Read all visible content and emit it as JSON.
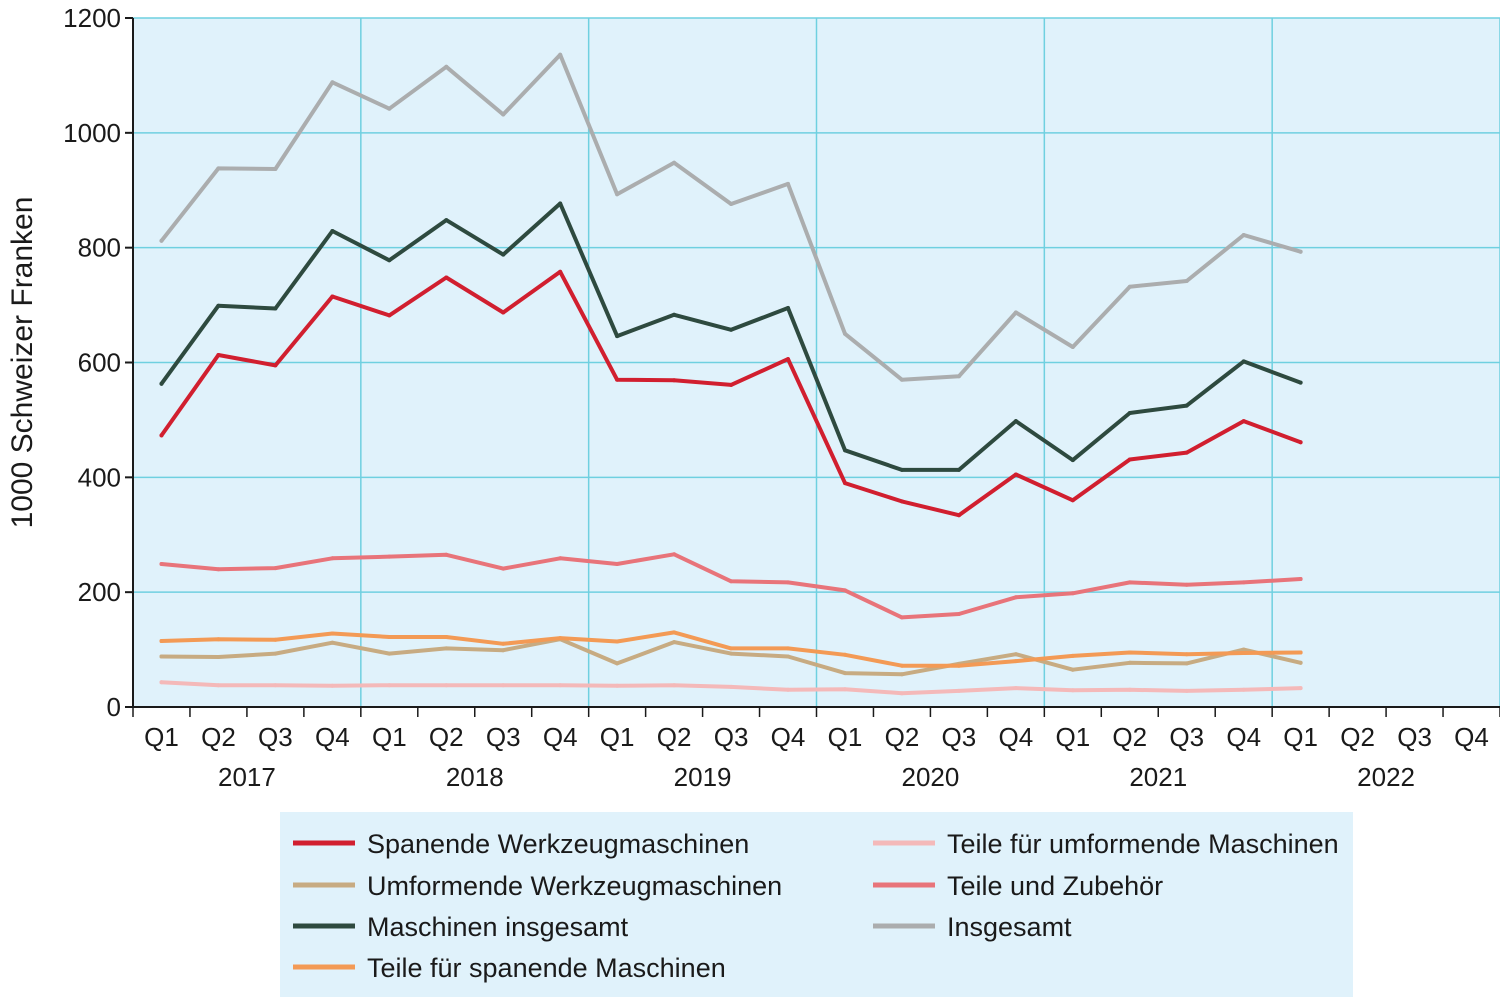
{
  "chart_data": {
    "type": "line",
    "ylabel": "1000 Schweizer Franken",
    "xlabel": "",
    "ylim": [
      0,
      1200
    ],
    "yticks": [
      0,
      200,
      400,
      600,
      800,
      1000,
      1200
    ],
    "categories": [
      "Q1",
      "Q2",
      "Q3",
      "Q4",
      "Q1",
      "Q2",
      "Q3",
      "Q4",
      "Q1",
      "Q2",
      "Q3",
      "Q4",
      "Q1",
      "Q2",
      "Q3",
      "Q4",
      "Q1",
      "Q2",
      "Q3",
      "Q4",
      "Q1",
      "Q2",
      "Q3",
      "Q4"
    ],
    "years": [
      "2017",
      "2018",
      "2019",
      "2020",
      "2021",
      "2022"
    ],
    "grid": true,
    "legend_position": "bottom",
    "colors": {
      "plot_background": "#e0f2fb",
      "grid": "#6fd0e0",
      "axis": "#1a1a1a",
      "legend_background": "#e0f2fb"
    },
    "series": [
      {
        "name": "Spanende Werkzeugmaschinen",
        "color": "#d11f2f",
        "values": [
          473,
          613,
          595,
          715,
          682,
          748,
          687,
          758,
          570,
          569,
          561,
          606,
          390,
          358,
          334,
          405,
          360,
          431,
          443,
          498,
          461,
          null,
          null,
          null
        ]
      },
      {
        "name": "Umformende Werkzeugmaschinen",
        "color": "#c7ab82",
        "values": [
          88,
          87,
          93,
          112,
          93,
          102,
          99,
          118,
          76,
          113,
          93,
          88,
          59,
          57,
          75,
          92,
          65,
          77,
          76,
          100,
          77,
          null,
          null,
          null
        ]
      },
      {
        "name": "Maschinen insgesamt",
        "color": "#2e4a3f",
        "values": [
          563,
          699,
          694,
          829,
          778,
          848,
          788,
          877,
          646,
          683,
          657,
          695,
          447,
          413,
          413,
          498,
          430,
          512,
          525,
          602,
          565,
          null,
          null,
          null
        ]
      },
      {
        "name": "Teile für spanende Maschinen",
        "color": "#f39a55",
        "values": [
          115,
          118,
          117,
          128,
          122,
          122,
          110,
          120,
          114,
          130,
          102,
          102,
          91,
          72,
          72,
          80,
          89,
          95,
          92,
          94,
          95,
          null,
          null,
          null
        ]
      },
      {
        "name": "Teile für umformende Maschinen",
        "color": "#f4b9b9",
        "values": [
          43,
          38,
          38,
          37,
          38,
          38,
          38,
          38,
          37,
          38,
          35,
          30,
          31,
          24,
          28,
          33,
          29,
          30,
          28,
          30,
          33,
          null,
          null,
          null
        ]
      },
      {
        "name": "Teile und Zubehör",
        "color": "#e8747a",
        "values": [
          249,
          240,
          242,
          259,
          262,
          265,
          241,
          259,
          249,
          266,
          219,
          217,
          203,
          156,
          162,
          191,
          198,
          217,
          213,
          217,
          223,
          null,
          null,
          null
        ]
      },
      {
        "name": "Insgesamt",
        "color": "#abadae",
        "values": [
          812,
          938,
          937,
          1088,
          1042,
          1115,
          1032,
          1136,
          893,
          948,
          876,
          911,
          650,
          570,
          576,
          687,
          627,
          732,
          742,
          822,
          793,
          null,
          null,
          null
        ]
      }
    ],
    "legend_layout": [
      [
        "Spanende Werkzeugmaschinen",
        "Teile für umformende Maschinen"
      ],
      [
        "Umformende Werkzeugmaschinen",
        "Teile und Zubehör"
      ],
      [
        "Maschinen insgesamt",
        "Insgesamt"
      ],
      [
        "Teile für spanende Maschinen",
        null
      ]
    ]
  }
}
